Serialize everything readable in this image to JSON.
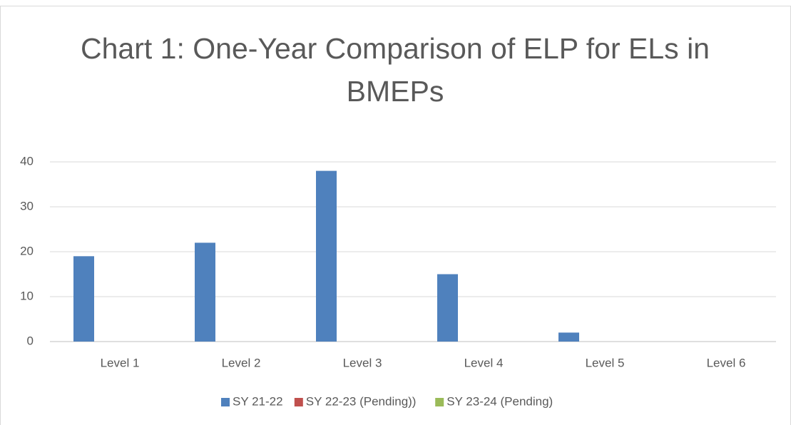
{
  "chart_data": {
    "type": "bar",
    "title": "Chart 1: One-Year Comparison of ELP for ELs in BMEPs",
    "categories": [
      "Level 1",
      "Level 2",
      "Level 3",
      "Level 4",
      "Level 5",
      "Level 6"
    ],
    "series": [
      {
        "name": "SY 21-22",
        "color": "#4f81bd",
        "values": [
          19,
          22,
          38,
          15,
          2,
          0
        ]
      },
      {
        "name": "SY 22-23 (Pending))",
        "color": "#c0504d",
        "values": [
          null,
          null,
          null,
          null,
          null,
          null
        ]
      },
      {
        "name": "SY 23-24 (Pending)",
        "color": "#9bbb59",
        "values": [
          null,
          null,
          null,
          null,
          null,
          null
        ]
      }
    ],
    "ylim": [
      0,
      40
    ],
    "yticks": [
      0,
      10,
      20,
      30,
      40
    ],
    "grid": true,
    "legend": "bottom"
  }
}
